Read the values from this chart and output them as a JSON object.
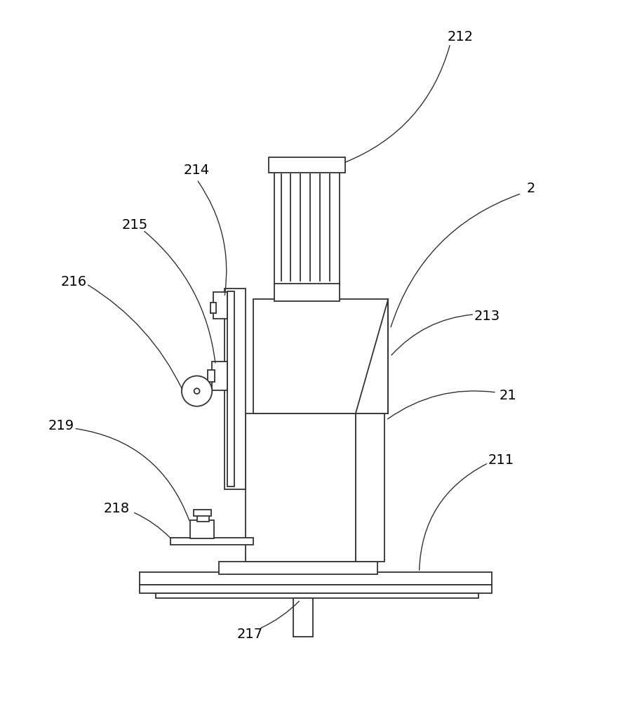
{
  "bg_color": "#ffffff",
  "line_color": "#333333",
  "label_color": "#000000",
  "line_width": 1.3,
  "fig_width": 8.88,
  "fig_height": 10.0
}
